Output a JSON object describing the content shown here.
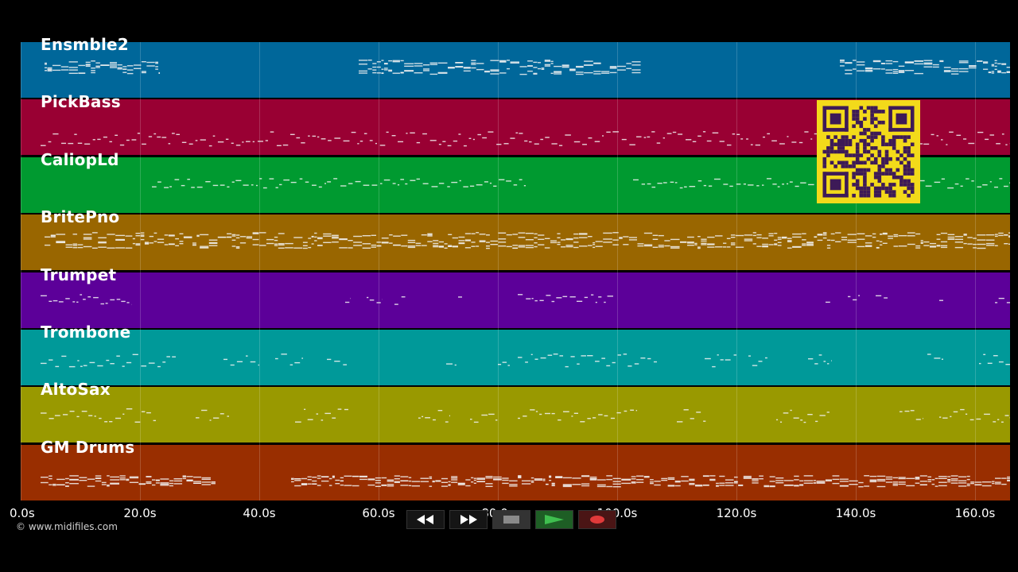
{
  "copyright": "© www.midifiles.com",
  "tracks": [
    {
      "name": "Ensmble2",
      "color": "#00679a"
    },
    {
      "name": "PickBass",
      "color": "#990033"
    },
    {
      "name": "CaliopLd",
      "color": "#009a30"
    },
    {
      "name": "BritePno",
      "color": "#996600"
    },
    {
      "name": "Trumpet",
      "color": "#5c0099"
    },
    {
      "name": "Trombone",
      "color": "#009999"
    },
    {
      "name": "AltoSax",
      "color": "#999900"
    },
    {
      "name": "GM Drums",
      "color": "#992e00"
    }
  ],
  "time_axis": {
    "ticks": [
      "0.0s",
      "20.0s",
      "40.0s",
      "60.0s",
      "80.0s",
      "100.0s",
      "120.0s",
      "140.0s",
      "160.0s"
    ]
  },
  "transport": {
    "buttons": [
      {
        "name": "rewind-button",
        "icon": "rewind-icon",
        "bg": "#151515"
      },
      {
        "name": "fast-forward-button",
        "icon": "fast-forward-icon",
        "bg": "#151515"
      },
      {
        "name": "stop-button",
        "icon": "stop-icon",
        "bg": "#333333"
      },
      {
        "name": "play-button",
        "icon": "play-icon",
        "bg": "#1e5e25"
      },
      {
        "name": "record-button",
        "icon": "record-icon",
        "bg": "#4a1515"
      }
    ]
  },
  "qr_code": {
    "color": "#f3da1a",
    "dark": "#3d1a57"
  }
}
